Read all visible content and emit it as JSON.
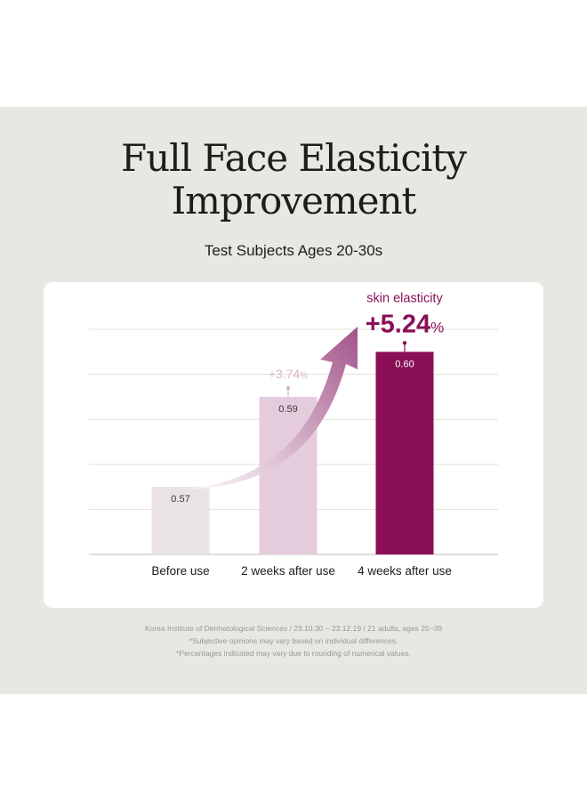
{
  "header": {
    "title_line1": "Full Face Elasticity",
    "title_line2": "Improvement",
    "subtitle": "Test Subjects Ages 20-30s"
  },
  "footnotes": [
    "Korea Institute of Dermatological Sciences / 23.10.30 ~ 23.12.19 / 21 adults, ages 25~39",
    "*Subjective opinions may vary based on individual differences.",
    "*Percentages indicated may vary due to rounding of numerical values."
  ],
  "colors": {
    "panel_bg": "#e8e7e2",
    "bar_before": "#e9e3e8",
    "bar_2weeks": "#e4ccdd",
    "bar_4weeks": "#8b0f56",
    "accent": "#8b0f56",
    "accent_light": "#d8b4cb"
  },
  "chart_data": {
    "type": "bar",
    "categories": [
      "Before use",
      "2 weeks after use",
      "4 weeks after use"
    ],
    "values": [
      0.57,
      0.59,
      0.6
    ],
    "value_labels": [
      "0.57",
      "0.59",
      "0.60"
    ],
    "ylim": [
      0.555,
      0.605
    ],
    "grid": true,
    "annotations": [
      {
        "category": "2 weeks after use",
        "text": "+3.74",
        "unit": "%"
      },
      {
        "category": "4 weeks after use",
        "label": "skin elasticity",
        "text": "+5.24",
        "unit": "%"
      }
    ],
    "trend_arrow": true
  }
}
